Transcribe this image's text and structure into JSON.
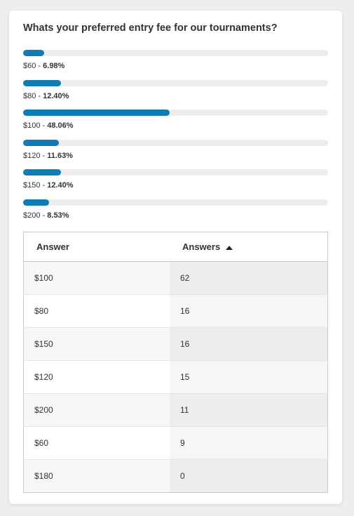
{
  "chart_data": {
    "type": "bar",
    "orientation": "horizontal",
    "title": "Whats your preferred entry fee for our tournaments?",
    "categories": [
      "$60",
      "$80",
      "$100",
      "$120",
      "$150",
      "$200"
    ],
    "values": [
      6.98,
      12.4,
      48.06,
      11.63,
      12.4,
      8.53
    ],
    "value_labels": [
      "6.98%",
      "12.40%",
      "48.06%",
      "11.63%",
      "12.40%",
      "8.53%"
    ],
    "color": "#0f7db3",
    "xlim": [
      0,
      100
    ]
  },
  "table": {
    "header": [
      "Answer",
      "Answers"
    ],
    "rows": [
      [
        "$100",
        62
      ],
      [
        "$80",
        16
      ],
      [
        "$150",
        16
      ],
      [
        "$120",
        15
      ],
      [
        "$200",
        11
      ],
      [
        "$60",
        9
      ],
      [
        "$180",
        0
      ]
    ]
  }
}
